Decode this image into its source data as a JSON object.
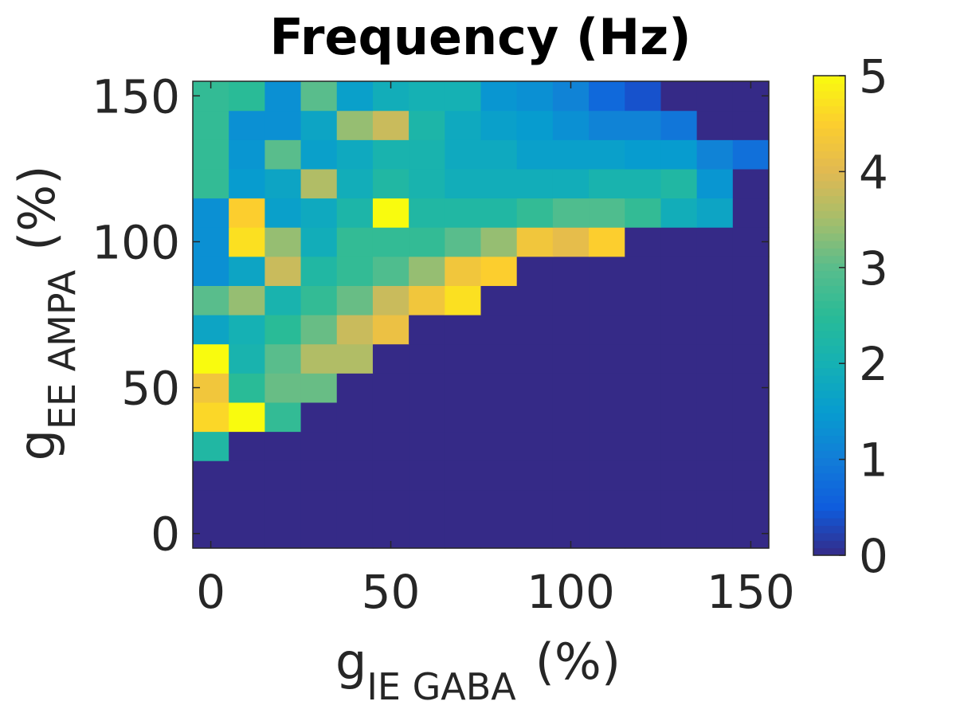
{
  "chart_data": {
    "type": "heatmap",
    "title": "Frequency (Hz)",
    "xlabel": {
      "main": "g",
      "sub": "IE GABA",
      "unit": "(%)"
    },
    "ylabel": {
      "main": "g",
      "sub": "EE AMPA",
      "unit": "(%)"
    },
    "x": [
      0,
      10,
      20,
      30,
      40,
      50,
      60,
      70,
      80,
      90,
      100,
      110,
      120,
      130,
      140,
      150
    ],
    "y": [
      0,
      10,
      20,
      30,
      40,
      50,
      60,
      70,
      80,
      90,
      100,
      110,
      120,
      130,
      140,
      150
    ],
    "xlim": [
      -5,
      155
    ],
    "ylim": [
      -5,
      155
    ],
    "xticks": [
      0,
      50,
      100,
      150
    ],
    "yticks": [
      0,
      50,
      100,
      150
    ],
    "xtick_labels": [
      "0",
      "50",
      "100",
      "150"
    ],
    "ytick_labels": [
      "0",
      "50",
      "100",
      "150"
    ],
    "colorbar": {
      "range": [
        0,
        5
      ],
      "ticks": [
        0,
        1,
        2,
        3,
        4,
        5
      ],
      "tick_labels": [
        "0",
        "1",
        "2",
        "3",
        "4",
        "5"
      ],
      "colormap": "parula"
    },
    "values": [
      [
        0,
        0,
        0,
        0,
        0,
        0,
        0,
        0,
        0,
        0,
        0,
        0,
        0,
        0,
        0,
        0
      ],
      [
        0,
        0,
        0,
        0,
        0,
        0,
        0,
        0,
        0,
        0,
        0,
        0,
        0,
        0,
        0,
        0
      ],
      [
        0,
        0,
        0,
        0,
        0,
        0,
        0,
        0,
        0,
        0,
        0,
        0,
        0,
        0,
        0,
        0
      ],
      [
        2.3,
        0,
        0,
        0,
        0,
        0,
        0,
        0,
        0,
        0,
        0,
        0,
        0,
        0,
        0,
        0
      ],
      [
        4.6,
        5.0,
        2.6,
        0,
        0,
        0,
        0,
        0,
        0,
        0,
        0,
        0,
        0,
        0,
        0,
        0
      ],
      [
        4.3,
        2.5,
        3.1,
        3.1,
        0,
        0,
        0,
        0,
        0,
        0,
        0,
        0,
        0,
        0,
        0,
        0
      ],
      [
        5.0,
        2.1,
        3.0,
        3.6,
        3.6,
        0,
        0,
        0,
        0,
        0,
        0,
        0,
        0,
        0,
        0,
        0
      ],
      [
        1.7,
        2.0,
        2.5,
        3.1,
        3.8,
        4.2,
        0,
        0,
        0,
        0,
        0,
        0,
        0,
        0,
        0,
        0
      ],
      [
        3.0,
        3.4,
        2.1,
        2.6,
        3.1,
        3.8,
        4.3,
        4.7,
        0,
        0,
        0,
        0,
        0,
        0,
        0,
        0
      ],
      [
        1.3,
        1.7,
        3.8,
        2.3,
        2.6,
        2.9,
        3.4,
        4.3,
        4.5,
        0,
        0,
        0,
        0,
        0,
        0,
        0
      ],
      [
        1.3,
        4.7,
        3.4,
        1.9,
        2.6,
        2.6,
        2.6,
        3.0,
        3.4,
        4.3,
        4.1,
        4.5,
        0,
        0,
        0,
        0
      ],
      [
        1.3,
        4.5,
        1.6,
        1.8,
        2.2,
        5.0,
        2.3,
        2.3,
        2.3,
        2.6,
        2.9,
        2.9,
        2.6,
        1.9,
        1.7,
        0
      ],
      [
        2.6,
        1.5,
        1.7,
        3.6,
        1.9,
        2.3,
        2.1,
        1.9,
        1.9,
        1.9,
        1.9,
        2.1,
        2.1,
        2.3,
        1.4,
        0
      ],
      [
        2.6,
        1.4,
        3.0,
        1.6,
        1.8,
        2.1,
        2.1,
        1.8,
        1.8,
        1.6,
        1.6,
        1.6,
        1.5,
        1.5,
        1.1,
        0.8
      ],
      [
        2.6,
        1.3,
        1.3,
        1.7,
        3.4,
        3.8,
        2.2,
        1.8,
        1.6,
        1.5,
        1.3,
        1.1,
        1.1,
        0.9,
        0,
        0
      ],
      [
        2.6,
        2.5,
        1.3,
        3.0,
        1.6,
        1.9,
        2.0,
        2.0,
        1.4,
        1.3,
        1.1,
        0.7,
        0.4,
        0,
        0,
        0
      ]
    ]
  }
}
